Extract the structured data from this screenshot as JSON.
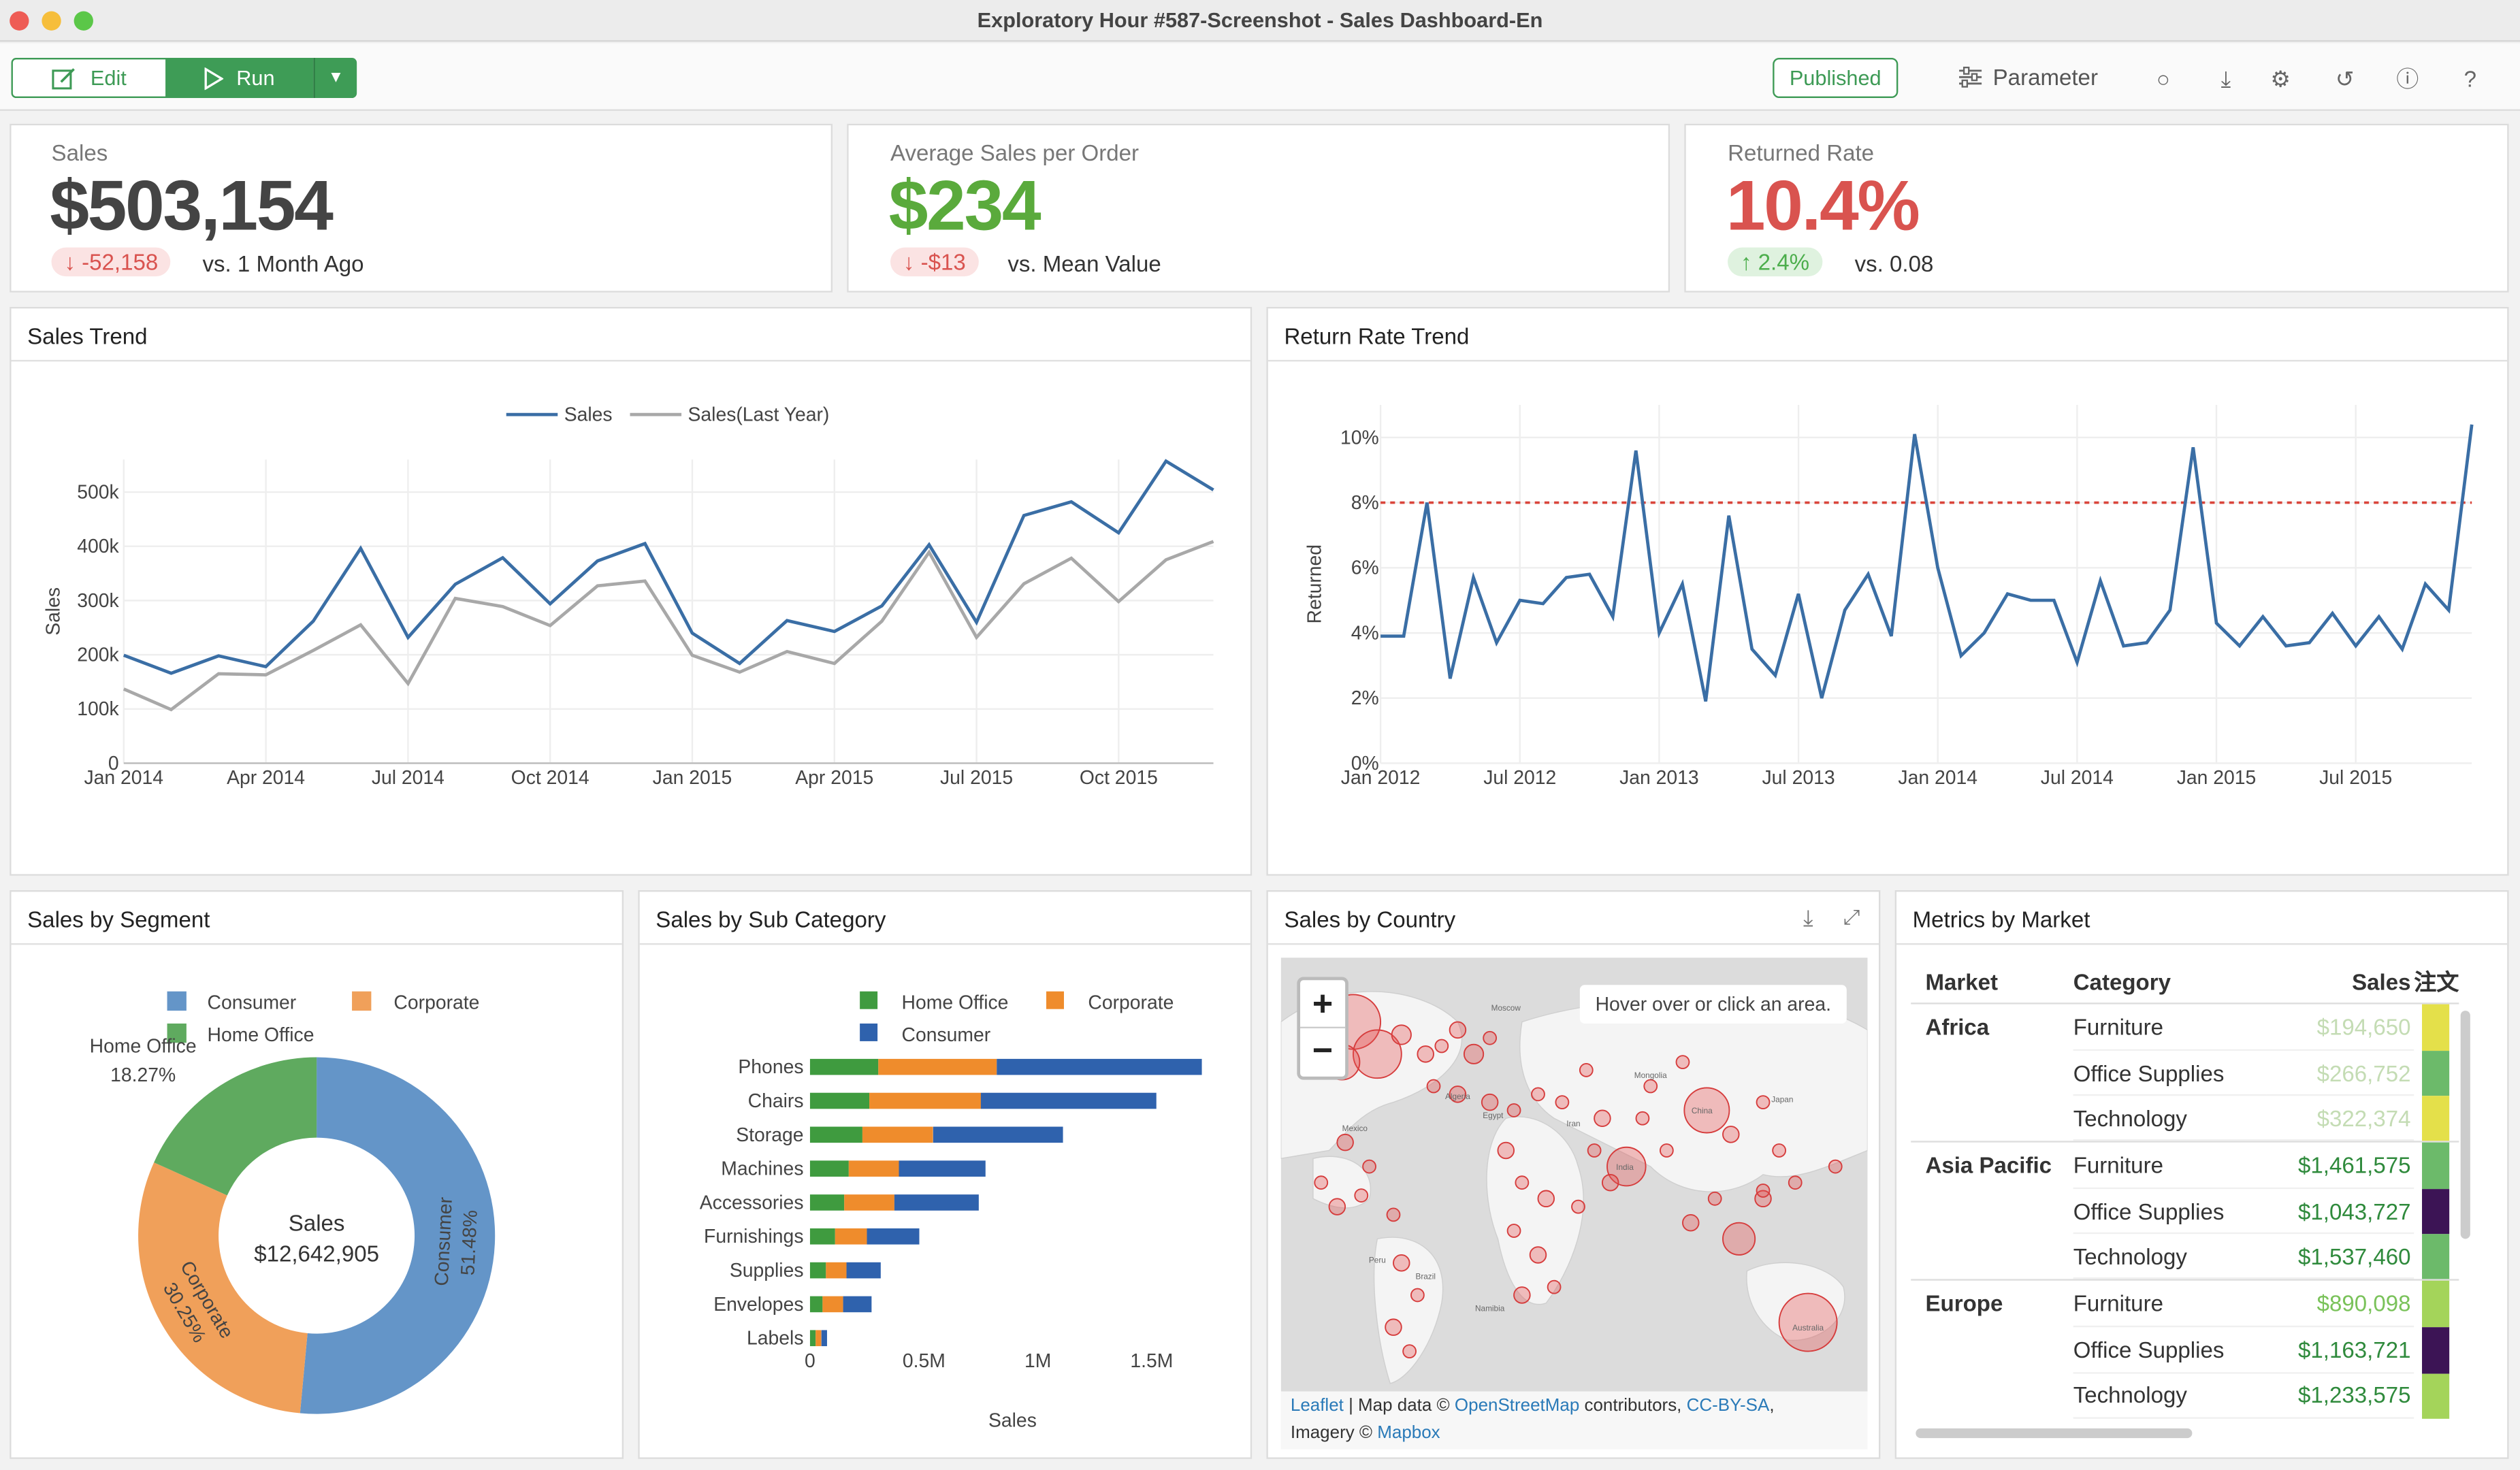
{
  "window": {
    "title": "Exploratory Hour #587-Screenshot - Sales Dashboard-En"
  },
  "toolbar": {
    "edit_label": "Edit",
    "run_label": "Run",
    "published_label": "Published",
    "parameter_label": "Parameter",
    "icons": [
      "edit-icon",
      "play-icon",
      "caret-down-icon",
      "sliders-icon",
      "comment-icon",
      "download-icon",
      "gear-icon",
      "history-icon",
      "info-icon",
      "help-icon"
    ]
  },
  "kpis": [
    {
      "label": "Sales",
      "value": "$503,154",
      "value_color": "#444444",
      "delta": "-52,158",
      "delta_dir": "down",
      "compare": "vs. 1 Month Ago"
    },
    {
      "label": "Average Sales per Order",
      "value": "$234",
      "value_color": "#5aaa3c",
      "delta": "-$13",
      "delta_dir": "down",
      "compare": "vs. Mean Value"
    },
    {
      "label": "Returned Rate",
      "value": "10.4%",
      "value_color": "#d9534f",
      "delta": "2.4%",
      "delta_dir": "up",
      "compare": "vs. 0.08"
    }
  ],
  "panels": {
    "sales_trend": "Sales Trend",
    "return_rate_trend": "Return Rate Trend",
    "sales_by_segment": "Sales by Segment",
    "sales_by_sub_category": "Sales by Sub Category",
    "sales_by_country": "Sales by Country",
    "metrics_by_market": "Metrics by Market"
  },
  "colors": {
    "blue": "#3a6ea5",
    "gray": "#a8a8a8",
    "red_dash": "#d9443a",
    "consumer": "#6495c8",
    "corporate": "#f0a05a",
    "home_office": "#5faa5f",
    "bar_home": "#3f9b3f",
    "bar_corp": "#ef8c2c",
    "bar_cons": "#2f62ad"
  },
  "chart_data": [
    {
      "type": "line",
      "title": "Sales Trend",
      "ylabel": "Sales",
      "ylim": [
        0,
        560000
      ],
      "x_ticks": [
        "Jan 2014",
        "Apr 2014",
        "Jul 2014",
        "Oct 2014",
        "Jan 2015",
        "Apr 2015",
        "Jul 2015",
        "Oct 2015"
      ],
      "y_ticks": [
        "0",
        "100k",
        "200k",
        "300k",
        "400k",
        "500k"
      ],
      "legend": "top-center",
      "series": [
        {
          "name": "Sales",
          "values": [
            199000,
            166000,
            198000,
            178000,
            262000,
            396000,
            232000,
            330000,
            379000,
            294000,
            373000,
            405000,
            240000,
            184000,
            263000,
            243000,
            290000,
            403000,
            260000,
            457000,
            482000,
            425000,
            557000,
            504000
          ]
        },
        {
          "name": "Sales(Last Year)",
          "values": [
            137000,
            99000,
            165000,
            163000,
            208000,
            255000,
            147000,
            304000,
            289000,
            254000,
            327000,
            336000,
            199000,
            168000,
            206000,
            184000,
            262000,
            389000,
            232000,
            331000,
            378000,
            298000,
            375000,
            409000
          ]
        }
      ]
    },
    {
      "type": "line",
      "title": "Return Rate Trend",
      "ylabel": "Returned",
      "ylim": [
        0,
        11
      ],
      "x_ticks": [
        "Jan 2012",
        "Jul 2012",
        "Jan 2013",
        "Jul 2013",
        "Jan 2014",
        "Jul 2014",
        "Jan 2015",
        "Jul 2015"
      ],
      "y_ticks": [
        "0%",
        "2%",
        "4%",
        "6%",
        "8%",
        "10%"
      ],
      "reference_line": 8,
      "series": [
        {
          "name": "Return Rate",
          "values": [
            3.9,
            3.9,
            8.0,
            2.6,
            5.7,
            3.7,
            5.0,
            4.9,
            5.7,
            5.8,
            4.5,
            9.6,
            4.0,
            5.5,
            1.9,
            7.6,
            3.5,
            2.7,
            5.2,
            2.0,
            4.7,
            5.8,
            3.9,
            10.1,
            6.0,
            3.3,
            4.0,
            5.2,
            5.0,
            5.0,
            3.1,
            5.6,
            3.6,
            3.7,
            4.7,
            9.7,
            4.3,
            3.6,
            4.5,
            3.6,
            3.7,
            4.6,
            3.6,
            4.5,
            3.5,
            5.5,
            4.7,
            10.4
          ]
        }
      ]
    },
    {
      "type": "pie",
      "title": "Sales by Segment",
      "center_label": "Sales",
      "center_value": "$12,642,905",
      "legend": "top",
      "series": [
        {
          "name": "Consumer",
          "value": 51.48,
          "label": "51.48%"
        },
        {
          "name": "Corporate",
          "value": 30.25,
          "label": "30.25%"
        },
        {
          "name": "Home Office",
          "value": 18.27,
          "label": "18.27%"
        }
      ]
    },
    {
      "type": "bar",
      "title": "Sales by Sub Category",
      "xlabel": "Sales",
      "xlim": [
        0,
        1700000
      ],
      "x_ticks": [
        "0",
        "0.5M",
        "1M",
        "1.5M"
      ],
      "categories": [
        "Phones",
        "Chairs",
        "Storage",
        "Machines",
        "Accessories",
        "Furnishings",
        "Supplies",
        "Envelopes",
        "Labels"
      ],
      "series": [
        {
          "name": "Home Office",
          "values": [
            300000,
            260000,
            230000,
            170000,
            150000,
            110000,
            70000,
            55000,
            25000
          ]
        },
        {
          "name": "Corporate",
          "values": [
            520000,
            490000,
            310000,
            220000,
            220000,
            140000,
            90000,
            90000,
            25000
          ]
        },
        {
          "name": "Consumer",
          "values": [
            900000,
            770000,
            570000,
            380000,
            370000,
            230000,
            150000,
            125000,
            25000
          ]
        }
      ],
      "legend": "top"
    }
  ],
  "map": {
    "placeholder": "Hover over or click an area.",
    "zoom_in": "+",
    "zoom_out": "−",
    "labels": [
      "China",
      "India",
      "Australia",
      "Moscow",
      "Mexico",
      "Brazil",
      "Egypt",
      "Iran",
      "Algeria",
      "Mongolia",
      "Japan",
      "Namibia",
      "Peru"
    ],
    "attribution_leaflet": "Leaflet",
    "attribution_sep": " | Map data © ",
    "attribution_osm": "OpenStreetMap",
    "attribution_contrib": " contributors, ",
    "attribution_cc": "CC-BY-SA",
    "attribution_imagery": "Imagery © ",
    "attribution_mapbox": "Mapbox"
  },
  "metrics_table": {
    "headers": [
      "Market",
      "Category",
      "Sales",
      "注文"
    ],
    "rows": [
      {
        "market": "Africa",
        "category": "Furniture",
        "sales": "$194,650",
        "sales_color": "#c4dcb4",
        "swatch": "#e4e04a"
      },
      {
        "market": "",
        "category": "Office Supplies",
        "sales": "$266,752",
        "sales_color": "#c4dcb4",
        "swatch": "#6cba6a"
      },
      {
        "market": "",
        "category": "Technology",
        "sales": "$322,374",
        "sales_color": "#c4dcb4",
        "swatch": "#e4e04a"
      },
      {
        "market": "Asia Pacific",
        "category": "Furniture",
        "sales": "$1,461,575",
        "sales_color": "#2f8a3c",
        "swatch": "#6cba6a"
      },
      {
        "market": "",
        "category": "Office Supplies",
        "sales": "$1,043,727",
        "sales_color": "#2f8a3c",
        "swatch": "#3c1455"
      },
      {
        "market": "",
        "category": "Technology",
        "sales": "$1,537,460",
        "sales_color": "#2f8a3c",
        "swatch": "#6cba6a"
      },
      {
        "market": "Europe",
        "category": "Furniture",
        "sales": "$890,098",
        "sales_color": "#7ac25a",
        "swatch": "#a4d45a"
      },
      {
        "market": "",
        "category": "Office Supplies",
        "sales": "$1,163,721",
        "sales_color": "#2f8a3c",
        "swatch": "#3c1455"
      },
      {
        "market": "",
        "category": "Technology",
        "sales": "$1,233,575",
        "sales_color": "#2f8a3c",
        "swatch": "#a4d45a"
      }
    ]
  }
}
